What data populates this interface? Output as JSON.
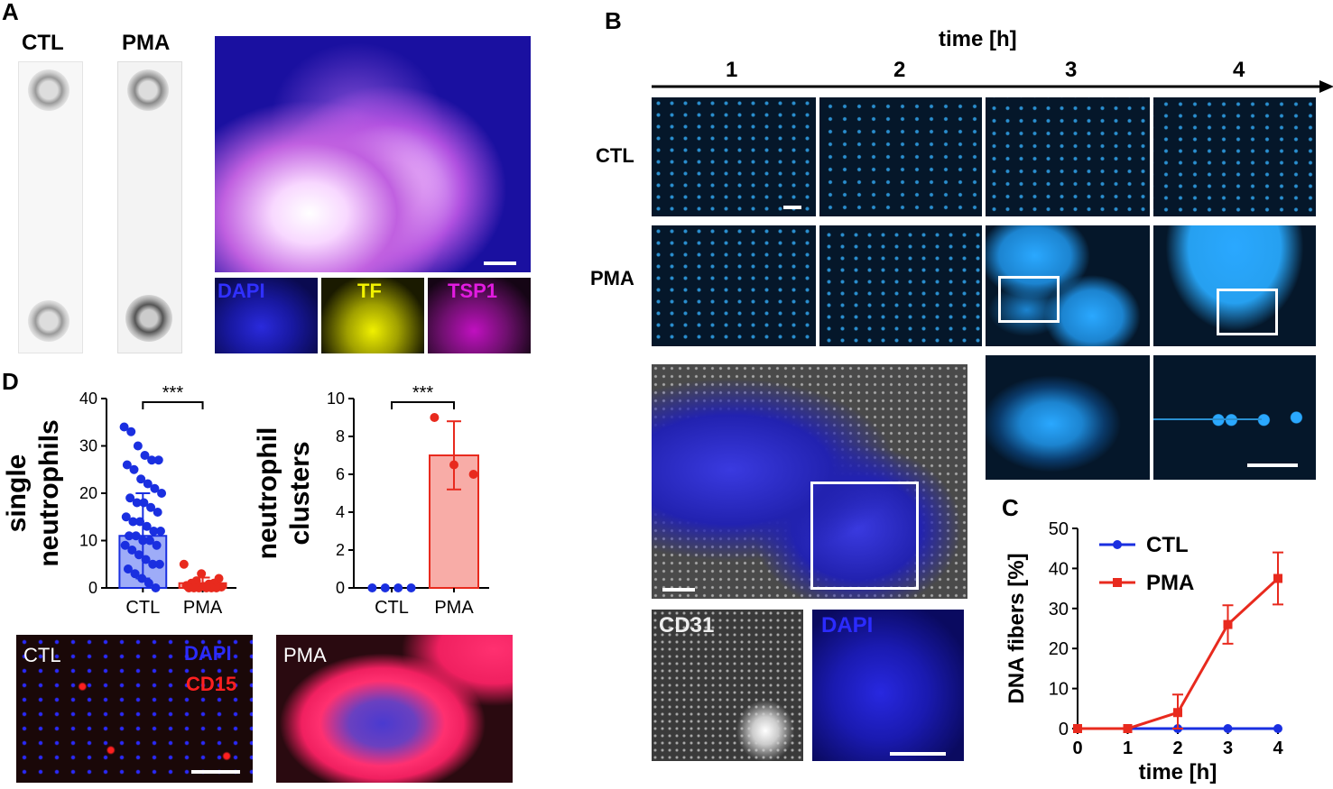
{
  "panels": {
    "A": "A",
    "B": "B",
    "C": "C",
    "D": "D"
  },
  "panelA": {
    "chip_ctl": "CTL",
    "chip_pma": "PMA",
    "stains": {
      "dapi": "DAPI",
      "tf": "TF",
      "tsp1": "TSP1"
    }
  },
  "panelB": {
    "axis_title": "time [h]",
    "times": [
      "1",
      "2",
      "3",
      "4"
    ],
    "rows": [
      "CTL",
      "PMA"
    ],
    "stains": {
      "cd31": "CD31",
      "dapi": "DAPI"
    }
  },
  "panelD": {
    "micro_ctl": "CTL",
    "micro_dapi": "DAPI",
    "micro_cd15": "CD15",
    "micro_pma": "PMA"
  },
  "colors": {
    "ctl": "#1a2fe0",
    "pma": "#e82a1e",
    "dapi": "#2b2bff",
    "tf": "#f2f200",
    "tsp1": "#e21be0",
    "cell_cyan": "#2aa8ff"
  },
  "chart_data": [
    {
      "type": "bar",
      "name": "single-neutrophils",
      "ylabel": "single neutrophils",
      "categories": [
        "CTL",
        "PMA"
      ],
      "values": [
        11,
        1
      ],
      "errors": [
        9,
        1.2
      ],
      "ylim": [
        0,
        40
      ],
      "yticks": [
        "0",
        "10",
        "20",
        "30",
        "40"
      ],
      "significance": "***",
      "ctl_points": [
        34,
        33,
        30,
        28,
        27,
        27,
        26,
        25,
        23,
        22,
        21,
        20,
        19,
        18,
        18,
        17,
        16,
        15,
        14,
        14,
        13,
        12,
        12,
        11,
        11,
        10,
        10,
        9,
        9,
        8,
        7,
        6,
        5,
        5,
        4,
        3,
        2,
        1,
        0
      ],
      "pma_points": [
        5,
        3,
        2,
        1.5,
        1,
        1,
        0.8,
        0.5,
        0.3,
        0.2,
        0,
        0,
        0,
        0,
        0,
        0
      ]
    },
    {
      "type": "bar",
      "name": "neutrophil-clusters",
      "ylabel": "neutrophil clusters",
      "categories": [
        "CTL",
        "PMA"
      ],
      "values": [
        0,
        7
      ],
      "errors": [
        0,
        1.8
      ],
      "ylim": [
        0,
        10
      ],
      "yticks": [
        "0",
        "2",
        "4",
        "6",
        "8",
        "10"
      ],
      "significance": "***",
      "ctl_points": [
        0,
        0,
        0,
        0
      ],
      "pma_points": [
        9,
        6.5,
        6
      ]
    },
    {
      "type": "line",
      "name": "dna-fibers",
      "ylabel": "DNA fibers [%]",
      "xlabel": "time [h]",
      "x": [
        0,
        1,
        2,
        3,
        4
      ],
      "xticks": [
        "0",
        "1",
        "2",
        "3",
        "4"
      ],
      "yticks": [
        "0",
        "10",
        "20",
        "30",
        "40",
        "50"
      ],
      "ylim": [
        0,
        50
      ],
      "legend": "top-right",
      "series": [
        {
          "name": "CTL",
          "values": [
            0,
            0,
            0,
            0,
            0
          ],
          "errors": [
            0,
            0,
            0,
            0,
            0
          ]
        },
        {
          "name": "PMA",
          "values": [
            0,
            0,
            4,
            26,
            37.5
          ],
          "errors": [
            0,
            0,
            4.5,
            4.8,
            6.5
          ]
        }
      ]
    }
  ]
}
